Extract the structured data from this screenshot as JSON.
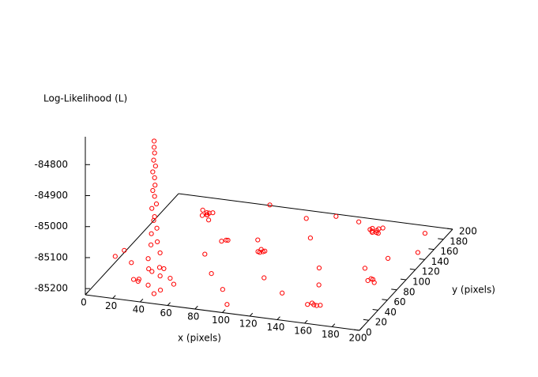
{
  "chart_data": {
    "type": "scatter3d",
    "zlabel": "Log-Likelihood (L)",
    "xlabel": "x (pixels)",
    "ylabel": "y (pixels)",
    "xlim": [
      0,
      200
    ],
    "ylim": [
      0,
      200
    ],
    "zlim": [
      -85220,
      -84710
    ],
    "xticks": [
      0,
      20,
      40,
      60,
      80,
      100,
      120,
      140,
      160,
      180,
      200
    ],
    "yticks": [
      0,
      20,
      40,
      60,
      80,
      100,
      120,
      140,
      160,
      180,
      200
    ],
    "zticks": [
      -85200,
      -85100,
      -85000,
      -84900,
      -84800
    ],
    "series": [
      {
        "color": "#ff0000",
        "x": [
          40,
          40,
          40,
          40,
          41,
          39,
          40,
          41,
          39,
          40,
          42,
          38,
          41,
          39,
          42,
          38,
          43,
          37,
          44,
          36,
          45,
          35,
          43,
          37,
          30,
          48,
          35,
          25,
          50,
          45,
          33,
          20,
          55,
          42,
          36,
          40,
          38,
          35,
          41,
          39,
          37,
          42,
          156,
          160,
          158,
          155,
          161,
          157,
          162,
          159,
          154,
          94,
          97,
          96,
          98,
          95,
          183,
          186,
          188,
          184,
          158,
          162,
          165,
          160,
          167,
          64,
          68,
          66,
          70,
          100,
          120,
          140,
          85,
          110,
          130,
          75,
          90,
          140,
          180,
          195,
          190,
          170,
          120,
          60,
          8,
          15,
          150,
          100
        ],
        "y": [
          30,
          30,
          31,
          29,
          30,
          30,
          31,
          29,
          30,
          31,
          29,
          31,
          28,
          32,
          30,
          30,
          28,
          32,
          31,
          29,
          27,
          33,
          34,
          26,
          25,
          20,
          40,
          30,
          35,
          15,
          18,
          40,
          28,
          45,
          145,
          148,
          150,
          149,
          144,
          146,
          152,
          150,
          156,
          159,
          161,
          160,
          155,
          154,
          162,
          157,
          158,
          94,
          96,
          92,
          97,
          98,
          68,
          70,
          67,
          72,
          12,
          14,
          11,
          16,
          13,
          104,
          106,
          108,
          190,
          180,
          185,
          175,
          120,
          60,
          40,
          50,
          30,
          90,
          120,
          140,
          170,
          100,
          130,
          80,
          60,
          20,
          60,
          10
        ],
        "z": [
          -84750,
          -84770,
          -84790,
          -84810,
          -84830,
          -84850,
          -84870,
          -84890,
          -84910,
          -84930,
          -84950,
          -84970,
          -84990,
          -85010,
          -85030,
          -85050,
          -85070,
          -85090,
          -85110,
          -85130,
          -85150,
          -85170,
          -85190,
          -85210,
          -85200,
          -85210,
          -85190,
          -85205,
          -85195,
          -85215,
          -85180,
          -85170,
          -85200,
          -85185,
          -85180,
          -85175,
          -85185,
          -85170,
          -85190,
          -85178,
          -85182,
          -85176,
          -85180,
          -85175,
          -85185,
          -85178,
          -85182,
          -85180,
          -85176,
          -85184,
          -85179,
          -85180,
          -85182,
          -85178,
          -85181,
          -85179,
          -85180,
          -85178,
          -85182,
          -85180,
          -85180,
          -85182,
          -85178,
          -85181,
          -85179,
          -85180,
          -85178,
          -85182,
          -85200,
          -85210,
          -85200,
          -85190,
          -85190,
          -85200,
          -85205,
          -85190,
          -85200,
          -85200,
          -85195,
          -85200,
          -85190,
          -85200,
          -85180,
          -85185,
          -85170,
          -85120,
          -85200,
          -85210
        ]
      }
    ]
  }
}
